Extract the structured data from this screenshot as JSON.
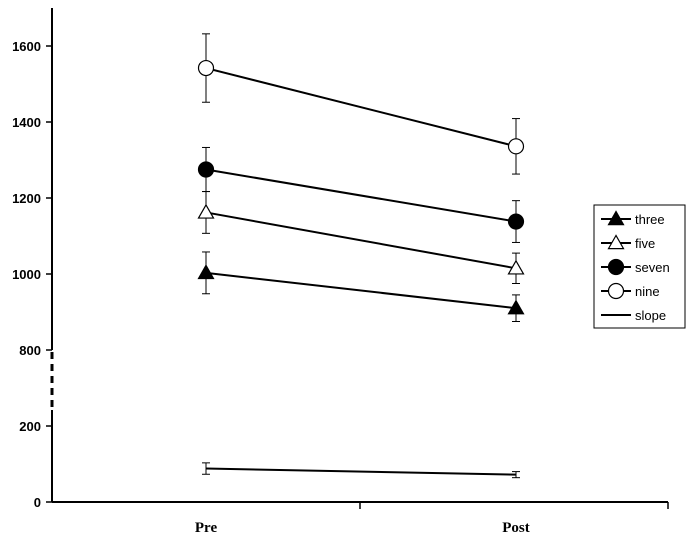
{
  "chart_data": {
    "type": "line",
    "categories": [
      "Pre",
      "Post"
    ],
    "yticks": [
      0,
      200,
      800,
      1000,
      1200,
      1400,
      1600
    ],
    "axis_break": "between 200 and 800",
    "grid": false,
    "legend_position": "right",
    "series": [
      {
        "name": "three",
        "marker": "filled-triangle",
        "values": [
          1003,
          910
        ],
        "errors": [
          55,
          35
        ]
      },
      {
        "name": "five",
        "marker": "open-triangle",
        "values": [
          1162,
          1015
        ],
        "errors": [
          55,
          40
        ]
      },
      {
        "name": "seven",
        "marker": "filled-circle",
        "values": [
          1275,
          1138
        ],
        "errors": [
          58,
          55
        ]
      },
      {
        "name": "nine",
        "marker": "open-circle",
        "values": [
          1542,
          1336
        ],
        "errors": [
          90,
          73
        ]
      },
      {
        "name": "slope",
        "marker": "none",
        "values": [
          88,
          72
        ],
        "errors": [
          15,
          8
        ]
      }
    ]
  }
}
